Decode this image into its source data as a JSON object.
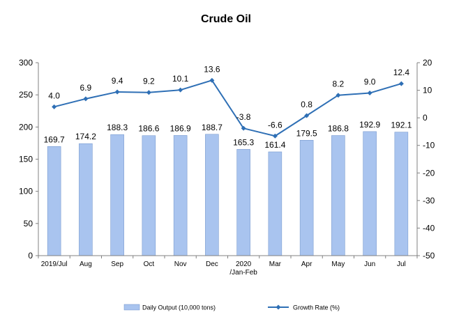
{
  "chart_data": {
    "type": "bar",
    "title": "Crude Oil",
    "categories": [
      [
        "2019/Jul"
      ],
      [
        "Aug"
      ],
      [
        "Sep"
      ],
      [
        "Oct"
      ],
      [
        "Nov"
      ],
      [
        "Dec"
      ],
      [
        "2020",
        "/Jan-Feb"
      ],
      [
        "Mar"
      ],
      [
        "Apr"
      ],
      [
        "May"
      ],
      [
        "Jun"
      ],
      [
        "Jul"
      ]
    ],
    "series": [
      {
        "name": "Daily Output (10,000 tons)",
        "type": "bar",
        "axis": "left",
        "color": "#a9c4ef",
        "values": [
          169.7,
          174.2,
          188.3,
          186.6,
          186.9,
          188.7,
          165.3,
          161.4,
          179.5,
          186.8,
          192.9,
          192.1
        ],
        "labels": [
          "169.7",
          "174.2",
          "188.3",
          "186.6",
          "186.9",
          "188.7",
          "165.3",
          "161.4",
          "179.5",
          "186.8",
          "192.9",
          "192.1"
        ]
      },
      {
        "name": "Growth Rate (%)",
        "type": "line",
        "axis": "right",
        "color": "#2e6fb5",
        "values": [
          4.0,
          6.9,
          9.4,
          9.2,
          10.1,
          13.6,
          -3.8,
          -6.6,
          0.8,
          8.2,
          9.0,
          12.4
        ],
        "labels": [
          "4.0",
          "6.9",
          "9.4",
          "9.2",
          "10.1",
          "13.6",
          "-3.8",
          "-6.6",
          "0.8",
          "8.2",
          "9.0",
          "12.4"
        ]
      }
    ],
    "y_left": {
      "min": 0,
      "max": 300,
      "ticks": [
        0,
        50,
        100,
        150,
        200,
        250,
        300
      ]
    },
    "y_right": {
      "min": -50,
      "max": 20,
      "ticks": [
        20,
        10,
        0,
        -10,
        -20,
        -30,
        -40,
        -50
      ]
    },
    "grid": false,
    "legend_position": "bottom"
  }
}
